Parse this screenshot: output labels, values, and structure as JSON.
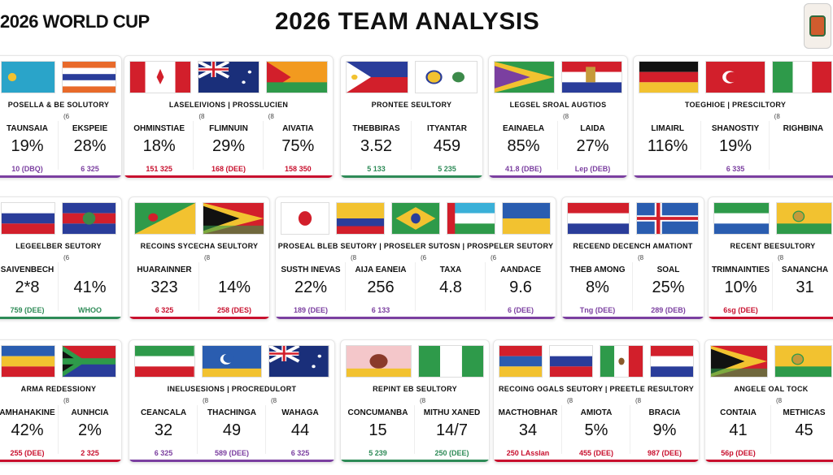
{
  "header": {
    "left_title": "2026 WORLD CUP",
    "main_title": "2026 TEAM ANALYSIS"
  },
  "colors": {
    "accent_purple": "#7b3fa0",
    "accent_red": "#c8102e",
    "accent_green": "#2e8b57"
  },
  "cards": [
    {
      "heading": "POSELLA & BE SOLUTORY",
      "underline": "#7b3fa0",
      "flags": [
        "kazakhstan",
        "netherlands-stripe"
      ],
      "columns": [
        {
          "tick": "",
          "label": "TAUNSAIA",
          "value": "19%",
          "footer": "10 (DBQ)"
        },
        {
          "tick": "(6",
          "label": "EKSPEIE",
          "value": "28%",
          "footer": "6 325"
        }
      ]
    },
    {
      "heading": "LASELEIVIONS | PROSSLUCIEN",
      "underline": "#c8102e",
      "flags": [
        "canada",
        "australia",
        "germany-ribbon"
      ],
      "columns": [
        {
          "tick": "",
          "label": "OHMINSTIAE",
          "value": "18%",
          "footer": "151 325"
        },
        {
          "tick": "(8",
          "label": "FLIMNUIN",
          "value": "29%",
          "footer": "168 (DEE)"
        },
        {
          "tick": "(8",
          "label": "AIVATIA",
          "value": "75%",
          "footer": "158 350"
        }
      ]
    },
    {
      "heading": "PRONTEE SEULTORY",
      "underline": "#2e8b57",
      "flags": [
        "philippines",
        "japan-seal"
      ],
      "columns": [
        {
          "tick": "",
          "label": "THEBBIRAS",
          "value": "3.52",
          "footer": "5 133"
        },
        {
          "tick": "",
          "label": "ITYANTAR",
          "value": "459",
          "footer": "5 235"
        }
      ]
    },
    {
      "heading": "LEGSEL SROAL AUGTIOS",
      "underline": "#7b3fa0",
      "flags": [
        "guyana-stripe",
        "serbia-crest"
      ],
      "columns": [
        {
          "tick": "",
          "label": "EAINAELA",
          "value": "85%",
          "footer": "41.8 (DBE)"
        },
        {
          "tick": "(8",
          "label": "LAIDA",
          "value": "27%",
          "footer": "Lep (DEB)"
        }
      ]
    },
    {
      "heading": "TOEGHIOE | PRESCILTORY",
      "underline": "#7b3fa0",
      "flags": [
        "germany",
        "turkey",
        "ireland"
      ],
      "columns": [
        {
          "tick": "",
          "label": "LIMAIRL",
          "value": "116%",
          "footer": ""
        },
        {
          "tick": "",
          "label": "SHANOSTIY",
          "value": "19%",
          "footer": "6 335"
        },
        {
          "tick": "(8",
          "label": "RIGHBINA",
          "value": "",
          "footer": ""
        }
      ]
    },
    {
      "heading": "LEGEELBER SEUTORY",
      "underline": "#2e8b57",
      "flags": [
        "russia",
        "tricolor-crest"
      ],
      "columns": [
        {
          "tick": "",
          "label": "SAIVENBECH",
          "value": "2*8",
          "footer": "759 (DEE)"
        },
        {
          "tick": "(6",
          "label": "",
          "value": "41%",
          "footer": "WHOO"
        }
      ]
    },
    {
      "heading": "RECOINS SYCECHA SEULTORY",
      "underline": "#c8102e",
      "flags": [
        "green-yellow",
        "guyana"
      ],
      "columns": [
        {
          "tick": "",
          "label": "HUARAINNER",
          "value": "323",
          "footer": "6 325"
        },
        {
          "tick": "(8",
          "label": "",
          "value": "14%",
          "footer": "258 (DES)"
        }
      ]
    },
    {
      "heading": "PROSEAL BLEB SEUTORY | PROSELER SUTOSN | PROSPELER SEUTORY",
      "underline": "#7b3fa0",
      "flags": [
        "japan",
        "colombia-stripe",
        "brazil",
        "estonia-stripe",
        "ukraine"
      ],
      "columns": [
        {
          "tick": "",
          "label": "SUSTH INEVAS",
          "value": "22%",
          "footer": "189 (DEE)"
        },
        {
          "tick": "(8",
          "label": "AIJA EANEIA",
          "value": "256",
          "footer": "6 133"
        },
        {
          "tick": "(6",
          "label": "TAXA",
          "value": "4.8",
          "footer": ""
        },
        {
          "tick": "(6",
          "label": "AANDACE",
          "value": "9.6",
          "footer": "6 (DEE)"
        }
      ]
    },
    {
      "heading": "RECEEND DECENCH AMATIONT",
      "underline": "#7b3fa0",
      "flags": [
        "netherlands",
        "iceland"
      ],
      "columns": [
        {
          "tick": "",
          "label": "THEB AMONG",
          "value": "8%",
          "footer": "Tng (DEE)"
        },
        {
          "tick": "(8",
          "label": "SOAL",
          "value": "25%",
          "footer": "289 (DEB)"
        }
      ]
    },
    {
      "heading": "RECENT BEESULTORY",
      "underline": "#c8102e",
      "flags": [
        "sierra-crest",
        "yellow-crest"
      ],
      "columns": [
        {
          "tick": "",
          "label": "TRIMNAINTIES",
          "value": "10%",
          "footer": "6sg (DEE)"
        },
        {
          "tick": "(8",
          "label": "SANANCHA",
          "value": "31",
          "footer": ""
        }
      ]
    },
    {
      "heading": "ARMA REDESSIONY",
      "underline": "#c8102e",
      "flags": [
        "romania",
        "south-africa"
      ],
      "columns": [
        {
          "tick": "",
          "label": "AMHAHAKINE",
          "value": "42%",
          "footer": "255 (DEE)"
        },
        {
          "tick": "(8",
          "label": "AUNHCIA",
          "value": "2%",
          "footer": "2 325"
        }
      ]
    },
    {
      "heading": "INELUSESIONS | PROCREDULORT",
      "underline": "#7b3fa0",
      "flags": [
        "italy",
        "comoros",
        "australia"
      ],
      "columns": [
        {
          "tick": "",
          "label": "CEANCALA",
          "value": "32",
          "footer": "6 325"
        },
        {
          "tick": "(8",
          "label": "THACHINGA",
          "value": "49",
          "footer": "589 (DEE)"
        },
        {
          "tick": "(8",
          "label": "WAHAGA",
          "value": "44",
          "footer": "6 325"
        }
      ]
    },
    {
      "heading": "REPINT EB SEULTORY",
      "underline": "#2e8b57",
      "flags": [
        "crest-red",
        "nigeria"
      ],
      "columns": [
        {
          "tick": "",
          "label": "CONCUMANBA",
          "value": "15",
          "footer": "5 239"
        },
        {
          "tick": "(8",
          "label": "MITHU XANED",
          "value": "14/7",
          "footer": "250 (DEE)"
        }
      ]
    },
    {
      "heading": "RECOING OGALS SEUTORY | PREETLE RESULTORY",
      "underline": "#c8102e",
      "flags": [
        "russia-tri",
        "russia",
        "mexico",
        "netherlands"
      ],
      "columns": [
        {
          "tick": "",
          "label": "MACTHOBHAR",
          "value": "34",
          "footer": "250 LAsslan"
        },
        {
          "tick": "(8",
          "label": "AMIOTA",
          "value": "5%",
          "footer": "455 (DEE)"
        },
        {
          "tick": "(8",
          "label": "BRACIA",
          "value": "9%",
          "footer": "987 (DEE)"
        }
      ]
    },
    {
      "heading": "ANGELE OAL TOCK",
      "underline": "#c8102e",
      "flags": [
        "guyana",
        "yellow-crest"
      ],
      "columns": [
        {
          "tick": "",
          "label": "CONTAIA",
          "value": "41",
          "footer": "56p (DEE)"
        },
        {
          "tick": "(8",
          "label": "METHICAS",
          "value": "45",
          "footer": ""
        }
      ]
    }
  ]
}
